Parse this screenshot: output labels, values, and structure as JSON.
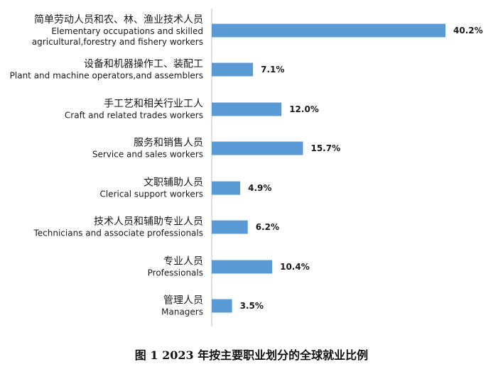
{
  "chart_data": {
    "type": "bar",
    "orientation": "horizontal",
    "title": "图 1   2023 年按主要职业划分的全球就业比例",
    "categories": [
      {
        "zh": "简单劳动人员和农、林、渔业技术人员",
        "en": [
          "Elementary occupations and skilled",
          "agricultural,forestry and fishery workers"
        ]
      },
      {
        "zh": "设备和机器操作工、装配工",
        "en": [
          "Plant and machine operators,and assemblers"
        ]
      },
      {
        "zh": "手工艺和相关行业工人",
        "en": [
          "Craft and related trades workers"
        ]
      },
      {
        "zh": "服务和销售人员",
        "en": [
          "Service and sales workers"
        ]
      },
      {
        "zh": "文职辅助人员",
        "en": [
          "Clerical support workers"
        ]
      },
      {
        "zh": "技术人员和辅助专业人员",
        "en": [
          "Technicians and associate professionals"
        ]
      },
      {
        "zh": "专业人员",
        "en": [
          "Professionals"
        ]
      },
      {
        "zh": "管理人员",
        "en": [
          "Managers"
        ]
      }
    ],
    "values": [
      40.2,
      7.1,
      12.0,
      15.7,
      4.9,
      6.2,
      10.4,
      3.5
    ],
    "value_labels": [
      "40.2%",
      "7.1%",
      "12.0%",
      "15.7%",
      "4.9%",
      "6.2%",
      "10.4%",
      "3.5%"
    ],
    "unit": "%",
    "xlim": [
      0,
      40.2
    ],
    "grid": false,
    "legend": "none",
    "bar_color": "#5b9bd5"
  }
}
